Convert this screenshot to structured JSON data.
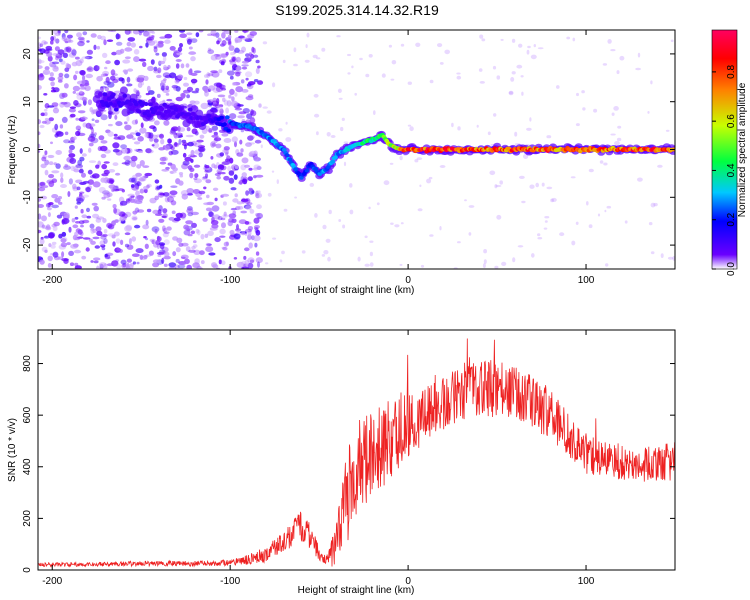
{
  "title": "S199.2025.314.14.32.R19",
  "chart_data": [
    {
      "type": "heatmap",
      "name": "spectrogram",
      "xlabel": "Height of straight line (km)",
      "ylabel": "Frequency (Hz)",
      "xlim": [
        -208,
        150
      ],
      "ylim": [
        -25,
        25
      ],
      "xticks": [
        -200,
        -100,
        0,
        100
      ],
      "xtick_labels": [
        "-200",
        "-100",
        "0",
        "100"
      ],
      "yticks": [
        -20,
        -10,
        0,
        10,
        20
      ],
      "ytick_labels": [
        "-20",
        "-10",
        "0",
        "10",
        "20"
      ],
      "colorbar": {
        "label": "Normalized spectral amplitude",
        "range": [
          0,
          0.97
        ],
        "ticks": [
          0.0,
          0.2,
          0.4,
          0.6,
          0.8
        ],
        "tick_labels": [
          "0.0",
          "0.2",
          "0.4",
          "0.6",
          "0.8"
        ],
        "colors": [
          "#ffffff",
          "#6a00ff",
          "#0000ff",
          "#00c8ff",
          "#00ff40",
          "#c8ff00",
          "#ff8000",
          "#ff0000",
          "#ff0060"
        ]
      },
      "ridge": {
        "x": [
          -170,
          -160,
          -150,
          -140,
          -130,
          -120,
          -110,
          -100,
          -90,
          -80,
          -70,
          -65,
          -60,
          -55,
          -50,
          -45,
          -40,
          -35,
          -30,
          -25,
          -20,
          -15,
          -10,
          -5,
          0,
          20,
          50,
          80,
          100,
          120,
          150
        ],
        "freq": [
          10,
          10,
          9,
          8,
          8,
          7,
          6,
          5.5,
          5,
          3,
          0,
          -3,
          -6,
          -3,
          -5,
          -4,
          -1,
          0,
          1,
          1.5,
          2,
          3,
          1,
          0,
          0,
          0,
          0,
          0,
          0,
          0,
          0
        ],
        "amplitude": [
          0.12,
          0.12,
          0.12,
          0.1,
          0.1,
          0.1,
          0.12,
          0.25,
          0.3,
          0.3,
          0.3,
          0.3,
          0.25,
          0.2,
          0.3,
          0.3,
          0.3,
          0.35,
          0.4,
          0.45,
          0.45,
          0.5,
          0.6,
          0.7,
          0.9,
          0.9,
          0.85,
          0.85,
          0.8,
          0.85,
          0.9
        ]
      }
    },
    {
      "type": "line",
      "name": "snr",
      "xlabel": "Height of straight line (km)",
      "ylabel": "SNR (10 * v/v)",
      "xlim": [
        -208,
        150
      ],
      "ylim": [
        0,
        930
      ],
      "xticks": [
        -200,
        -100,
        0,
        100
      ],
      "xtick_labels": [
        "-200",
        "-100",
        "0",
        "100"
      ],
      "yticks": [
        0,
        200,
        400,
        600,
        800
      ],
      "ytick_labels": [
        "0",
        "200",
        "400",
        "600",
        "800"
      ],
      "color": "#ee2222",
      "series": [
        {
          "name": "SNR",
          "x": [
            -208,
            -180,
            -150,
            -120,
            -100,
            -90,
            -80,
            -70,
            -60,
            -55,
            -50,
            -45,
            -40,
            -35,
            -30,
            -25,
            -20,
            -15,
            -10,
            -5,
            0,
            10,
            20,
            30,
            40,
            50,
            60,
            70,
            80,
            90,
            100,
            110,
            120,
            130,
            140,
            150
          ],
          "y": [
            20,
            22,
            25,
            25,
            28,
            40,
            60,
            110,
            170,
            130,
            60,
            40,
            100,
            250,
            380,
            420,
            450,
            480,
            500,
            550,
            560,
            600,
            650,
            690,
            710,
            700,
            680,
            650,
            600,
            520,
            450,
            430,
            420,
            410,
            410,
            420
          ],
          "spread": [
            8,
            8,
            10,
            10,
            12,
            20,
            30,
            40,
            60,
            50,
            30,
            20,
            100,
            180,
            200,
            180,
            180,
            160,
            160,
            150,
            120,
            110,
            110,
            110,
            110,
            110,
            110,
            100,
            100,
            90,
            80,
            70,
            70,
            70,
            70,
            80
          ]
        }
      ]
    }
  ]
}
